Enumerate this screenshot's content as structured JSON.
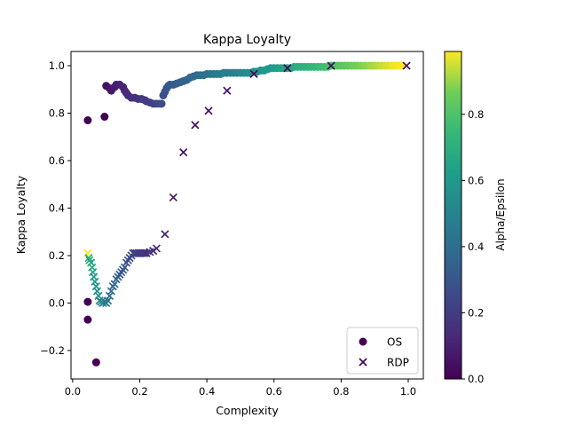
{
  "chart_data": {
    "type": "scatter",
    "title": "Kappa Loyalty",
    "xlabel": "Complexity",
    "ylabel": "Kappa Loyalty",
    "xlim": [
      -0.005,
      1.045
    ],
    "ylim": [
      -0.32,
      1.06
    ],
    "xticks": [
      0.0,
      0.2,
      0.4,
      0.6,
      0.8,
      1.0
    ],
    "xtick_labels": [
      "0.0",
      "0.2",
      "0.4",
      "0.6",
      "0.8",
      "1.0"
    ],
    "yticks": [
      -0.2,
      0.0,
      0.2,
      0.4,
      0.6,
      0.8,
      1.0
    ],
    "ytick_labels": [
      "−0.2",
      "0.0",
      "0.2",
      "0.4",
      "0.6",
      "0.8",
      "1.0"
    ],
    "grid": false,
    "legend_position": "lower-right",
    "colormap": "viridis",
    "colorbar": {
      "label": "Alpha/Epsilon",
      "range": [
        0.0,
        0.99
      ],
      "ticks": [
        0.0,
        0.2,
        0.4,
        0.6,
        0.8
      ],
      "tick_labels": [
        "0.0",
        "0.2",
        "0.4",
        "0.6",
        "0.8"
      ]
    },
    "series": [
      {
        "name": "OS",
        "marker": "circle",
        "legend_color": "#440154",
        "points": [
          [
            0.045,
            0.77,
            0.0
          ],
          [
            0.045,
            0.005,
            0.0
          ],
          [
            0.045,
            -0.07,
            0.0
          ],
          [
            0.07,
            -0.25,
            0.0
          ],
          [
            0.095,
            0.785,
            0.0
          ],
          [
            0.1,
            0.915,
            0.04
          ],
          [
            0.11,
            0.905,
            0.06
          ],
          [
            0.115,
            0.895,
            0.07
          ],
          [
            0.125,
            0.91,
            0.08
          ],
          [
            0.13,
            0.92,
            0.09
          ],
          [
            0.14,
            0.92,
            0.1
          ],
          [
            0.15,
            0.91,
            0.11
          ],
          [
            0.155,
            0.895,
            0.12
          ],
          [
            0.16,
            0.885,
            0.13
          ],
          [
            0.165,
            0.875,
            0.14
          ],
          [
            0.175,
            0.865,
            0.15
          ],
          [
            0.185,
            0.865,
            0.16
          ],
          [
            0.195,
            0.86,
            0.17
          ],
          [
            0.205,
            0.86,
            0.18
          ],
          [
            0.215,
            0.855,
            0.19
          ],
          [
            0.22,
            0.85,
            0.2
          ],
          [
            0.23,
            0.845,
            0.21
          ],
          [
            0.24,
            0.84,
            0.22
          ],
          [
            0.25,
            0.84,
            0.23
          ],
          [
            0.26,
            0.84,
            0.25
          ],
          [
            0.265,
            0.84,
            0.26
          ],
          [
            0.27,
            0.875,
            0.27
          ],
          [
            0.275,
            0.89,
            0.28
          ],
          [
            0.28,
            0.905,
            0.29
          ],
          [
            0.285,
            0.915,
            0.3
          ],
          [
            0.29,
            0.92,
            0.31
          ],
          [
            0.3,
            0.92,
            0.32
          ],
          [
            0.31,
            0.925,
            0.33
          ],
          [
            0.32,
            0.93,
            0.34
          ],
          [
            0.33,
            0.935,
            0.35
          ],
          [
            0.34,
            0.94,
            0.36
          ],
          [
            0.35,
            0.95,
            0.37
          ],
          [
            0.36,
            0.955,
            0.38
          ],
          [
            0.37,
            0.96,
            0.39
          ],
          [
            0.38,
            0.96,
            0.4
          ],
          [
            0.39,
            0.96,
            0.41
          ],
          [
            0.4,
            0.965,
            0.42
          ],
          [
            0.41,
            0.965,
            0.43
          ],
          [
            0.42,
            0.965,
            0.44
          ],
          [
            0.43,
            0.965,
            0.45
          ],
          [
            0.44,
            0.965,
            0.46
          ],
          [
            0.45,
            0.97,
            0.47
          ],
          [
            0.46,
            0.97,
            0.48
          ],
          [
            0.47,
            0.97,
            0.49
          ],
          [
            0.48,
            0.97,
            0.5
          ],
          [
            0.49,
            0.97,
            0.51
          ],
          [
            0.5,
            0.97,
            0.52
          ],
          [
            0.51,
            0.97,
            0.53
          ],
          [
            0.52,
            0.97,
            0.54
          ],
          [
            0.53,
            0.97,
            0.55
          ],
          [
            0.54,
            0.975,
            0.56
          ],
          [
            0.55,
            0.975,
            0.57
          ],
          [
            0.56,
            0.98,
            0.58
          ],
          [
            0.57,
            0.98,
            0.59
          ],
          [
            0.58,
            0.985,
            0.6
          ],
          [
            0.59,
            0.99,
            0.61
          ],
          [
            0.6,
            0.99,
            0.62
          ],
          [
            0.61,
            0.99,
            0.63
          ],
          [
            0.62,
            0.99,
            0.64
          ],
          [
            0.63,
            0.99,
            0.65
          ],
          [
            0.64,
            0.99,
            0.66
          ],
          [
            0.65,
            0.99,
            0.67
          ],
          [
            0.66,
            0.995,
            0.68
          ],
          [
            0.67,
            0.995,
            0.69
          ],
          [
            0.68,
            0.995,
            0.7
          ],
          [
            0.69,
            0.995,
            0.71
          ],
          [
            0.7,
            0.995,
            0.72
          ],
          [
            0.71,
            0.995,
            0.73
          ],
          [
            0.72,
            0.995,
            0.74
          ],
          [
            0.73,
            0.995,
            0.75
          ],
          [
            0.74,
            0.995,
            0.76
          ],
          [
            0.75,
            0.995,
            0.77
          ],
          [
            0.76,
            0.995,
            0.78
          ],
          [
            0.77,
            1.0,
            0.79
          ],
          [
            0.78,
            1.0,
            0.8
          ],
          [
            0.79,
            1.0,
            0.81
          ],
          [
            0.8,
            1.0,
            0.82
          ],
          [
            0.81,
            1.0,
            0.83
          ],
          [
            0.82,
            1.0,
            0.84
          ],
          [
            0.83,
            1.0,
            0.85
          ],
          [
            0.84,
            1.0,
            0.86
          ],
          [
            0.85,
            1.0,
            0.87
          ],
          [
            0.86,
            1.0,
            0.88
          ],
          [
            0.87,
            1.0,
            0.89
          ],
          [
            0.88,
            1.0,
            0.9
          ],
          [
            0.89,
            1.0,
            0.91
          ],
          [
            0.9,
            1.0,
            0.92
          ],
          [
            0.91,
            1.0,
            0.93
          ],
          [
            0.92,
            1.0,
            0.94
          ],
          [
            0.93,
            1.0,
            0.95
          ],
          [
            0.94,
            1.0,
            0.96
          ],
          [
            0.95,
            1.0,
            0.97
          ],
          [
            0.96,
            1.0,
            0.98
          ],
          [
            0.97,
            1.0,
            0.985
          ],
          [
            0.98,
            1.0,
            0.99
          ]
        ]
      },
      {
        "name": "RDP",
        "marker": "x",
        "legend_color": "#440154",
        "points": [
          [
            0.045,
            0.21,
            0.99
          ],
          [
            0.048,
            0.19,
            0.7
          ],
          [
            0.05,
            0.18,
            0.68
          ],
          [
            0.055,
            0.17,
            0.66
          ],
          [
            0.058,
            0.15,
            0.65
          ],
          [
            0.06,
            0.13,
            0.63
          ],
          [
            0.063,
            0.11,
            0.61
          ],
          [
            0.066,
            0.09,
            0.6
          ],
          [
            0.07,
            0.07,
            0.58
          ],
          [
            0.073,
            0.05,
            0.56
          ],
          [
            0.077,
            0.03,
            0.55
          ],
          [
            0.08,
            0.01,
            0.53
          ],
          [
            0.085,
            0.005,
            0.51
          ],
          [
            0.09,
            0.0,
            0.49
          ],
          [
            0.095,
            0.005,
            0.47
          ],
          [
            0.1,
            0.0,
            0.45
          ],
          [
            0.105,
            0.01,
            0.43
          ],
          [
            0.11,
            0.03,
            0.41
          ],
          [
            0.115,
            0.05,
            0.39
          ],
          [
            0.12,
            0.07,
            0.37
          ],
          [
            0.125,
            0.08,
            0.36
          ],
          [
            0.13,
            0.1,
            0.34
          ],
          [
            0.135,
            0.11,
            0.33
          ],
          [
            0.14,
            0.12,
            0.32
          ],
          [
            0.145,
            0.13,
            0.31
          ],
          [
            0.15,
            0.14,
            0.3
          ],
          [
            0.155,
            0.15,
            0.29
          ],
          [
            0.16,
            0.17,
            0.28
          ],
          [
            0.165,
            0.18,
            0.27
          ],
          [
            0.17,
            0.19,
            0.26
          ],
          [
            0.175,
            0.2,
            0.25
          ],
          [
            0.18,
            0.21,
            0.24
          ],
          [
            0.185,
            0.21,
            0.23
          ],
          [
            0.19,
            0.21,
            0.22
          ],
          [
            0.195,
            0.21,
            0.21
          ],
          [
            0.2,
            0.21,
            0.2
          ],
          [
            0.205,
            0.21,
            0.19
          ],
          [
            0.21,
            0.21,
            0.18
          ],
          [
            0.215,
            0.21,
            0.17
          ],
          [
            0.22,
            0.21,
            0.16
          ],
          [
            0.23,
            0.215,
            0.15
          ],
          [
            0.24,
            0.22,
            0.14
          ],
          [
            0.25,
            0.23,
            0.13
          ],
          [
            0.275,
            0.29,
            0.1
          ],
          [
            0.3,
            0.445,
            0.07
          ],
          [
            0.33,
            0.635,
            0.06
          ],
          [
            0.365,
            0.75,
            0.05
          ],
          [
            0.405,
            0.81,
            0.05
          ],
          [
            0.46,
            0.895,
            0.04
          ],
          [
            0.54,
            0.965,
            0.03
          ],
          [
            0.64,
            0.99,
            0.02
          ],
          [
            0.77,
            1.0,
            0.02
          ],
          [
            0.995,
            1.0,
            0.01
          ]
        ]
      }
    ]
  }
}
